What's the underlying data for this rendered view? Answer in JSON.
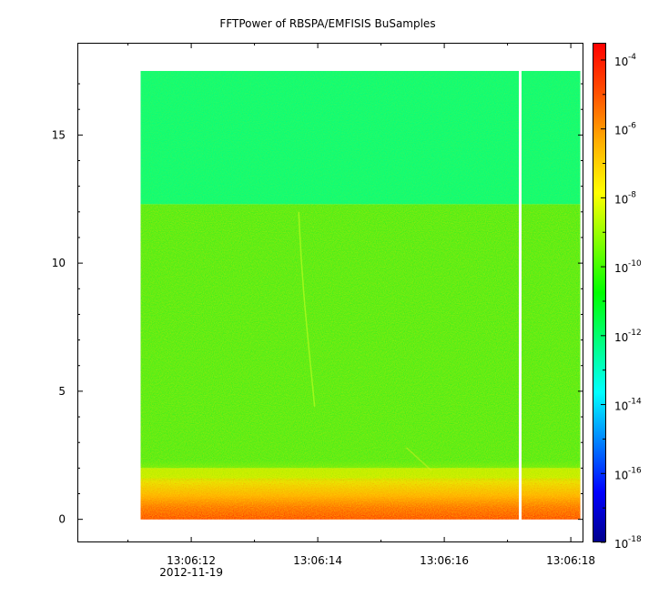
{
  "chart_data": {
    "type": "heatmap",
    "title": "FFTPower of RBSPA/EMFISIS  BuSamples",
    "xlabel": "",
    "ylabel": "",
    "x_ticks": [
      {
        "value": 12,
        "label": "13:06:12"
      },
      {
        "value": 14,
        "label": "13:06:14"
      },
      {
        "value": 16,
        "label": "13:06:16"
      },
      {
        "value": 18,
        "label": "13:06:18"
      }
    ],
    "x_date_label": "2012-11-19",
    "x_minor_ticks": [
      11,
      13,
      15,
      17
    ],
    "xlim": [
      10.2,
      18.2
    ],
    "data_x_range": [
      11.2,
      18.15
    ],
    "gap_x": 17.2,
    "y_ticks": [
      {
        "value": 0,
        "label": "0"
      },
      {
        "value": 5,
        "label": "5"
      },
      {
        "value": 10,
        "label": "10"
      },
      {
        "value": 15,
        "label": "15"
      }
    ],
    "ylim": [
      -0.9,
      18.6
    ],
    "data_y_range": [
      0,
      17.5
    ],
    "colorbar": {
      "scale": "log",
      "range_exponent": [
        -18,
        -3.5
      ],
      "tick_exponents": [
        -4,
        -6,
        -8,
        -10,
        -12,
        -14,
        -16,
        -18
      ],
      "tick_base": "10",
      "tick_sup_labels": [
        "-4",
        "-6",
        "-8",
        "-10",
        "-12",
        "-14",
        "-16",
        "-18"
      ],
      "colormap": [
        "#00008c",
        "#0000ff",
        "#0080ff",
        "#00ffff",
        "#00ff80",
        "#00ff00",
        "#80ff00",
        "#ffff00",
        "#ffb000",
        "#ff5000",
        "#ff0000"
      ]
    },
    "power_bands": [
      {
        "y_range": [
          12.3,
          17.5
        ],
        "log_power": -12.6,
        "color": "#00ff80"
      },
      {
        "y_range": [
          2.0,
          12.3
        ],
        "log_power": -10.8,
        "color": "#38f020"
      },
      {
        "y_range": [
          1.0,
          2.0
        ],
        "log_power": -8.5,
        "color": "#e8ee00"
      },
      {
        "y_range": [
          0,
          1.0
        ],
        "log_power": -7.2,
        "color": "#ff6000"
      }
    ]
  }
}
